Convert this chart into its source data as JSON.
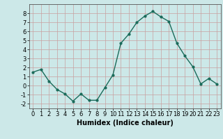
{
  "x": [
    0,
    1,
    2,
    3,
    4,
    5,
    6,
    7,
    8,
    9,
    10,
    11,
    12,
    13,
    14,
    15,
    16,
    17,
    18,
    19,
    20,
    21,
    22,
    23
  ],
  "y": [
    1.5,
    1.8,
    0.5,
    -0.4,
    -0.9,
    -1.7,
    -0.9,
    -1.6,
    -1.6,
    -0.2,
    1.2,
    4.7,
    5.7,
    7.0,
    7.7,
    8.2,
    7.6,
    7.1,
    4.7,
    3.3,
    2.1,
    0.2,
    0.8,
    0.2
  ],
  "line_color": "#1a6b5a",
  "marker": "o",
  "markersize": 2,
  "linewidth": 1.0,
  "xlabel": "Humidex (Indice chaleur)",
  "xlim": [
    -0.5,
    23.5
  ],
  "ylim": [
    -2.5,
    9.0
  ],
  "yticks": [
    -2,
    -1,
    0,
    1,
    2,
    3,
    4,
    5,
    6,
    7,
    8
  ],
  "xticks": [
    0,
    1,
    2,
    3,
    4,
    5,
    6,
    7,
    8,
    9,
    10,
    11,
    12,
    13,
    14,
    15,
    16,
    17,
    18,
    19,
    20,
    21,
    22,
    23
  ],
  "bg_color": "#cce8e8",
  "grid_color": "#c8a0a0",
  "tick_fontsize": 6,
  "xlabel_fontsize": 7
}
